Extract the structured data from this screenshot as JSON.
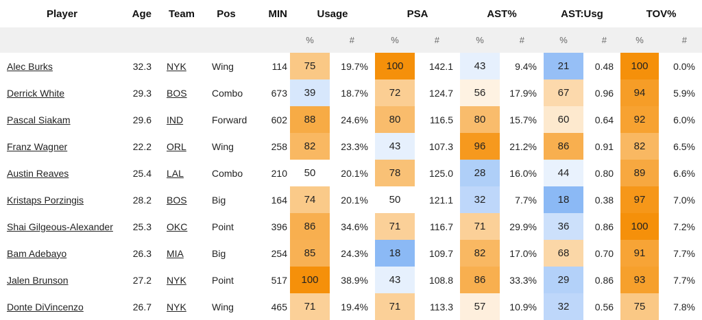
{
  "colors": {
    "header_bg": "#f0f0f0",
    "high": "#f5900a",
    "low": "#6ea7f3",
    "neutral": "#ffffff"
  },
  "headers": {
    "player": "Player",
    "age": "Age",
    "team": "Team",
    "pos": "Pos",
    "min": "MIN",
    "usage": "Usage",
    "psa": "PSA",
    "ast_pct": "AST%",
    "ast_usg": "AST:Usg",
    "tov_pct": "TOV%",
    "pct_sym": "%",
    "num_sym": "#"
  },
  "rows": [
    {
      "player": "Alec Burks",
      "age": "32.3",
      "team": "NYK",
      "pos": "Wing",
      "min": "114",
      "usage_p": "75",
      "usage_v": "19.7%",
      "psa_p": "100",
      "psa_v": "142.1",
      "ast_p": "43",
      "ast_v": "9.4%",
      "astusg_p": "21",
      "astusg_v": "0.48",
      "tov_p": "100",
      "tov_v": "0.0%"
    },
    {
      "player": "Derrick White",
      "age": "29.3",
      "team": "BOS",
      "pos": "Combo",
      "min": "673",
      "usage_p": "39",
      "usage_v": "18.7%",
      "psa_p": "72",
      "psa_v": "124.7",
      "ast_p": "56",
      "ast_v": "17.9%",
      "astusg_p": "67",
      "astusg_v": "0.96",
      "tov_p": "94",
      "tov_v": "5.9%"
    },
    {
      "player": "Pascal Siakam",
      "age": "29.6",
      "team": "IND",
      "pos": "Forward",
      "min": "602",
      "usage_p": "88",
      "usage_v": "24.6%",
      "psa_p": "80",
      "psa_v": "116.5",
      "ast_p": "80",
      "ast_v": "15.7%",
      "astusg_p": "60",
      "astusg_v": "0.64",
      "tov_p": "92",
      "tov_v": "6.0%"
    },
    {
      "player": "Franz Wagner",
      "age": "22.2",
      "team": "ORL",
      "pos": "Wing",
      "min": "258",
      "usage_p": "82",
      "usage_v": "23.3%",
      "psa_p": "43",
      "psa_v": "107.3",
      "ast_p": "96",
      "ast_v": "21.2%",
      "astusg_p": "86",
      "astusg_v": "0.91",
      "tov_p": "82",
      "tov_v": "6.5%"
    },
    {
      "player": "Austin Reaves",
      "age": "25.4",
      "team": "LAL",
      "pos": "Combo",
      "min": "210",
      "usage_p": "50",
      "usage_v": "20.1%",
      "psa_p": "78",
      "psa_v": "125.0",
      "ast_p": "28",
      "ast_v": "16.0%",
      "astusg_p": "44",
      "astusg_v": "0.80",
      "tov_p": "89",
      "tov_v": "6.6%"
    },
    {
      "player": "Kristaps Porzingis",
      "age": "28.2",
      "team": "BOS",
      "pos": "Big",
      "min": "164",
      "usage_p": "74",
      "usage_v": "20.1%",
      "psa_p": "50",
      "psa_v": "121.1",
      "ast_p": "32",
      "ast_v": "7.7%",
      "astusg_p": "18",
      "astusg_v": "0.38",
      "tov_p": "97",
      "tov_v": "7.0%"
    },
    {
      "player": "Shai Gilgeous-Alexander",
      "age": "25.3",
      "team": "OKC",
      "pos": "Point",
      "min": "396",
      "usage_p": "86",
      "usage_v": "34.6%",
      "psa_p": "71",
      "psa_v": "116.7",
      "ast_p": "71",
      "ast_v": "29.9%",
      "astusg_p": "36",
      "astusg_v": "0.86",
      "tov_p": "100",
      "tov_v": "7.2%"
    },
    {
      "player": "Bam Adebayo",
      "age": "26.3",
      "team": "MIA",
      "pos": "Big",
      "min": "254",
      "usage_p": "85",
      "usage_v": "24.3%",
      "psa_p": "18",
      "psa_v": "109.7",
      "ast_p": "82",
      "ast_v": "17.0%",
      "astusg_p": "68",
      "astusg_v": "0.70",
      "tov_p": "91",
      "tov_v": "7.7%"
    },
    {
      "player": "Jalen Brunson",
      "age": "27.2",
      "team": "NYK",
      "pos": "Point",
      "min": "517",
      "usage_p": "100",
      "usage_v": "38.9%",
      "psa_p": "43",
      "psa_v": "108.8",
      "ast_p": "86",
      "ast_v": "33.3%",
      "astusg_p": "29",
      "astusg_v": "0.86",
      "tov_p": "93",
      "tov_v": "7.7%"
    },
    {
      "player": "Donte DiVincenzo",
      "age": "26.7",
      "team": "NYK",
      "pos": "Wing",
      "min": "465",
      "usage_p": "71",
      "usage_v": "19.4%",
      "psa_p": "71",
      "psa_v": "113.3",
      "ast_p": "57",
      "ast_v": "10.9%",
      "astusg_p": "32",
      "astusg_v": "0.56",
      "tov_p": "75",
      "tov_v": "7.8%"
    }
  ]
}
